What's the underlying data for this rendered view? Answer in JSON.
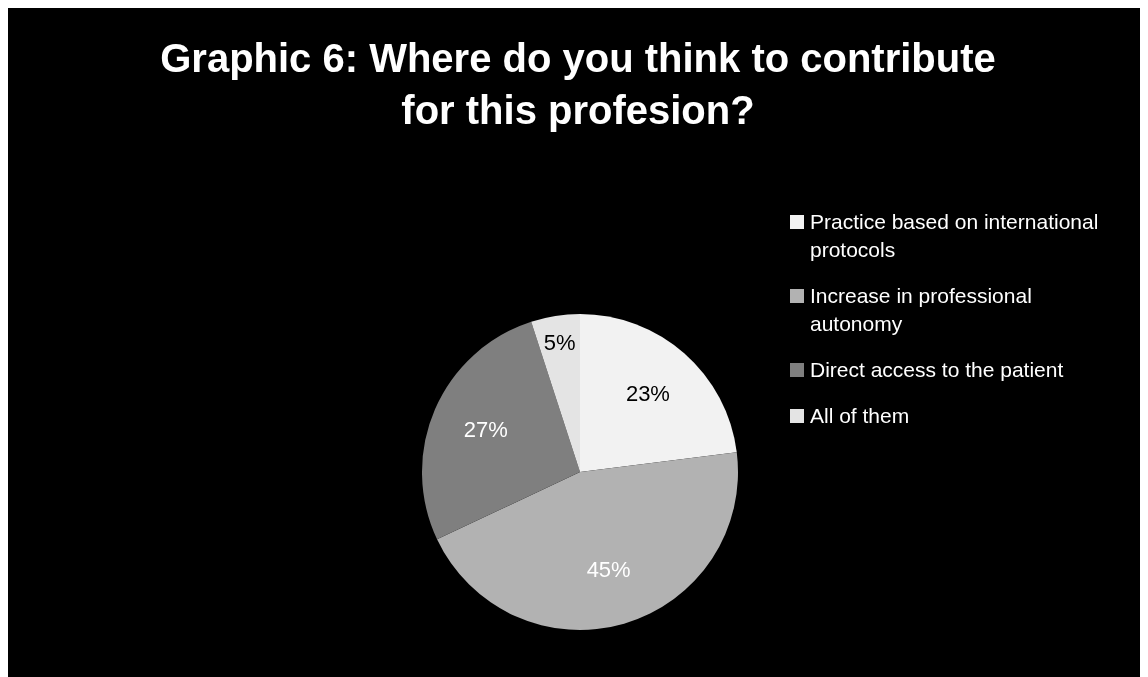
{
  "chart_data": {
    "type": "pie",
    "title": "Graphic 6: Where do you think to contribute for this profesion?",
    "categories": [
      "Practice based on international protocols",
      "Increase in professional autonomy",
      "Direct access to the patient",
      "All of them"
    ],
    "values": [
      23,
      45,
      27,
      5
    ],
    "colors": [
      "#f2f2f2",
      "#b2b2b2",
      "#7f7f7f",
      "#e4e4e4"
    ],
    "value_labels": [
      "23%",
      "45%",
      "27%",
      "5%"
    ],
    "legend": "right"
  }
}
